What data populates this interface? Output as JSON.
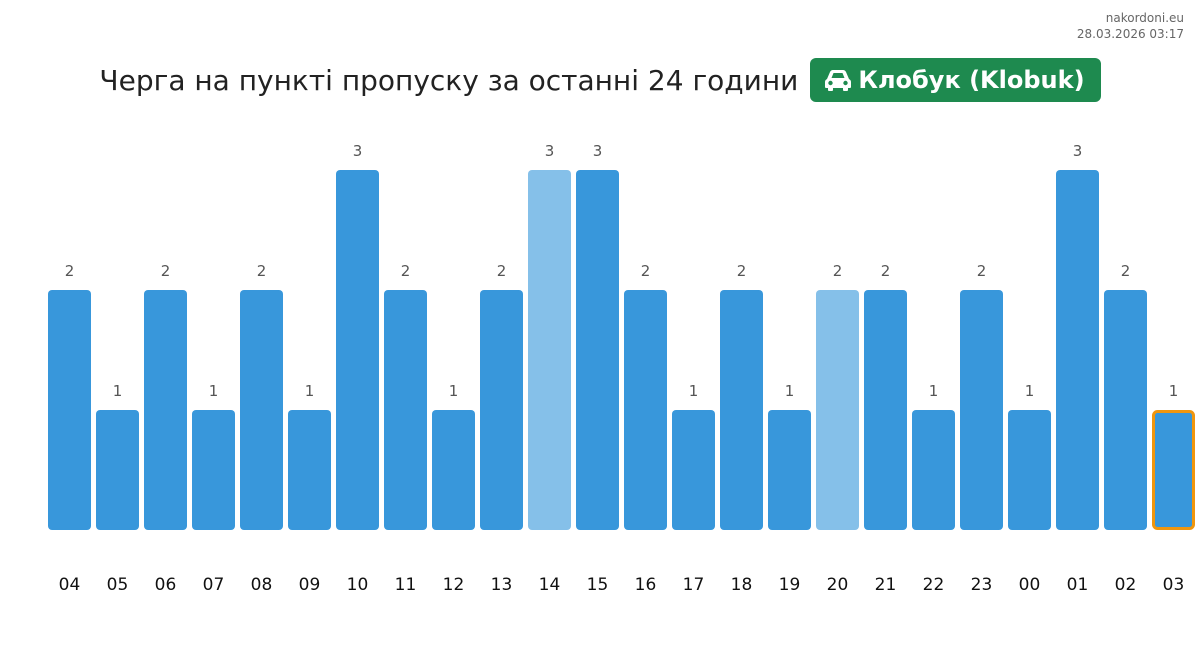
{
  "site": {
    "domain": "nakordoni.eu",
    "timestamp": "28.03.2026 03:17"
  },
  "header": {
    "title": "Черга на пункті пропуску за останні 24 години",
    "checkpoint": "Клобук (Klobuk)",
    "checkpoint_icon": "car-icon",
    "badge_color": "#1e8a4f"
  },
  "colors": {
    "bar": "#3897db",
    "bar_light": "#85c0e9",
    "highlight_border": "#f0960e",
    "label": "#555555",
    "tick": "#111111"
  },
  "chart_data": {
    "type": "bar",
    "title": "Черга на пункті пропуску за останні 24 години",
    "categories": [
      "04",
      "05",
      "06",
      "07",
      "08",
      "09",
      "10",
      "11",
      "12",
      "13",
      "14",
      "15",
      "16",
      "17",
      "18",
      "19",
      "20",
      "21",
      "22",
      "23",
      "00",
      "01",
      "02",
      "03"
    ],
    "values": [
      2,
      1,
      2,
      1,
      2,
      1,
      3,
      2,
      1,
      2,
      3,
      3,
      2,
      1,
      2,
      1,
      2,
      2,
      1,
      2,
      1,
      3,
      2,
      1
    ],
    "light_bars": [
      "14",
      "20"
    ],
    "highlighted_bar": "03",
    "ylim": [
      0,
      3
    ],
    "grid": false,
    "legend": "none"
  }
}
